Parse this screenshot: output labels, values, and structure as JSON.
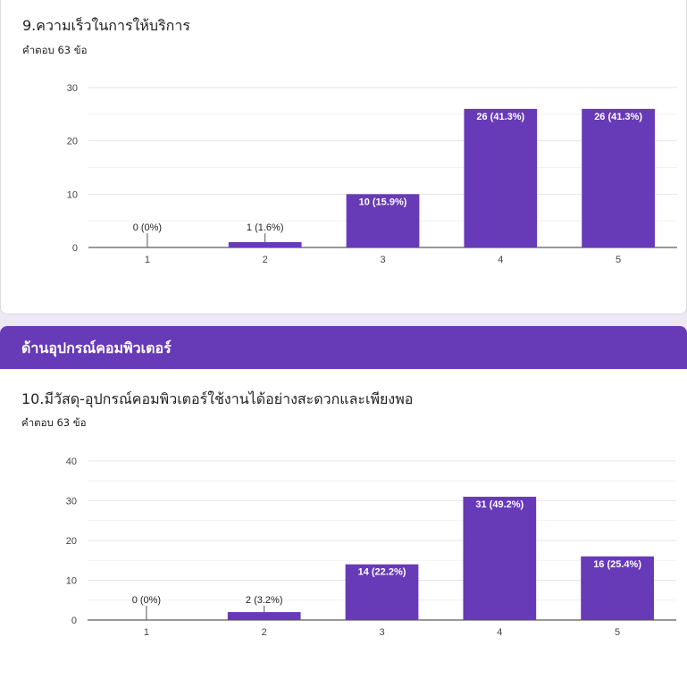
{
  "question1": {
    "title": "9.ความเร็วในการให้บริการ",
    "response_count": "คำตอบ 63 ข้อ"
  },
  "section": {
    "title": "ด้านอุปกรณ์คอมพิวเตอร์"
  },
  "question2": {
    "title": "10.มีวัสดุ-อุปกรณ์คอมพิวเตอร์ใช้งานได้อย่างสะดวกและเพียงพอ",
    "response_count": "คำตอบ 63 ข้อ"
  },
  "colors": {
    "accent": "#673ab7",
    "background": "#ede7f6"
  },
  "chart_data": [
    {
      "type": "bar",
      "categories": [
        "1",
        "2",
        "3",
        "4",
        "5"
      ],
      "values": [
        0,
        1,
        10,
        26,
        26
      ],
      "labels": [
        "0 (0%)",
        "1 (1.6%)",
        "10 (15.9%)",
        "26 (41.3%)",
        "26 (41.3%)"
      ],
      "yticks": [
        0,
        10,
        20,
        30
      ],
      "ylim": [
        0,
        30
      ],
      "grid": true
    },
    {
      "type": "bar",
      "categories": [
        "1",
        "2",
        "3",
        "4",
        "5"
      ],
      "values": [
        0,
        2,
        14,
        31,
        16
      ],
      "labels": [
        "0 (0%)",
        "2 (3.2%)",
        "14 (22.2%)",
        "31 (49.2%)",
        "16 (25.4%)"
      ],
      "yticks": [
        0,
        10,
        20,
        30,
        40
      ],
      "ylim": [
        0,
        40
      ],
      "grid": true
    }
  ]
}
